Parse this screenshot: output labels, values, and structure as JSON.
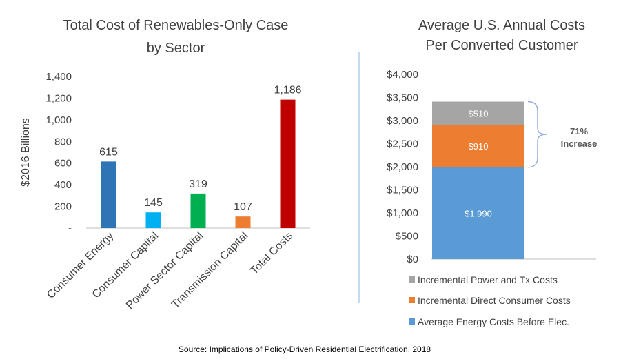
{
  "chart_data": [
    {
      "type": "bar",
      "title_lines": [
        "Total Cost of Renewables-Only Case",
        "by Sector"
      ],
      "ylabel": "$2016 Billions",
      "xlabel": "",
      "categories": [
        "Consumer Energy",
        "Consumer Capital",
        "Power Sector Capital",
        "Transmission Capital",
        "Total Costs"
      ],
      "values": [
        615,
        145,
        319,
        107,
        1186
      ],
      "value_labels": [
        "615",
        "145",
        "319",
        "107",
        "1,186"
      ],
      "colors": [
        "#2E75B6",
        "#00B0F0",
        "#00B050",
        "#ED7D31",
        "#C00000"
      ],
      "ylim": [
        0,
        1400
      ],
      "yticks": [
        0,
        200,
        400,
        600,
        800,
        1000,
        1200,
        1400
      ],
      "ytick_labels": [
        "-",
        "200",
        "400",
        "600",
        "800",
        "1,000",
        "1,200",
        "1,400"
      ],
      "grid": false
    },
    {
      "type": "bar",
      "stacked": true,
      "title_lines": [
        "Average U.S. Annual Costs",
        "Per Converted Customer"
      ],
      "categories": [
        ""
      ],
      "series": [
        {
          "name": "Average Energy Costs Before Elec.",
          "values": [
            1990
          ],
          "label": "$1,990",
          "color": "#5B9BD5"
        },
        {
          "name": "Incremental Direct Consumer Costs",
          "values": [
            910
          ],
          "label": "$910",
          "color": "#ED7D31"
        },
        {
          "name": "Incremental Power and Tx Costs",
          "values": [
            510
          ],
          "label": "$510",
          "color": "#A5A5A5"
        }
      ],
      "ylim": [
        0,
        4000
      ],
      "yticks": [
        0,
        500,
        1000,
        1500,
        2000,
        2500,
        3000,
        3500,
        4000
      ],
      "ytick_labels": [
        "$0",
        "$500",
        "$1,000",
        "$1,500",
        "$2,000",
        "$2,500",
        "$3,000",
        "$3,500",
        "$4,000"
      ],
      "annotation": [
        "71%",
        "Increase"
      ],
      "legend_order": [
        2,
        1,
        0
      ],
      "legend_position": "bottom",
      "grid": false
    }
  ],
  "source": "Source: Implications of Policy-Driven Residential Electrification, 2018",
  "colors": {
    "divider": "#9DC3E6",
    "axis": "#BFBFBF",
    "brace": "#8EA9DB"
  }
}
